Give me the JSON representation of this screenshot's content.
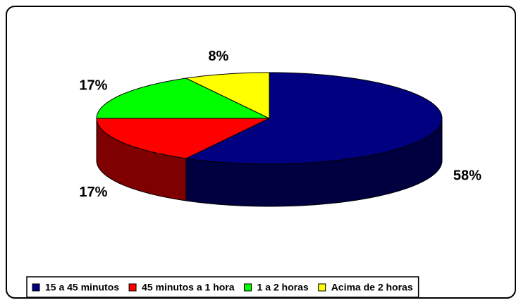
{
  "chart_data": {
    "type": "pie",
    "categories": [
      "15 a 45 minutos",
      "45 minutos a 1 hora",
      "1 a 2 horas",
      "Acima de 2 horas"
    ],
    "values": [
      58,
      17,
      17,
      8
    ],
    "value_labels": [
      "58%",
      "17%",
      "17%",
      "8%"
    ],
    "colors": [
      "#000080",
      "#ff0000",
      "#00ff00",
      "#ffff00"
    ],
    "legend": "bottom"
  }
}
